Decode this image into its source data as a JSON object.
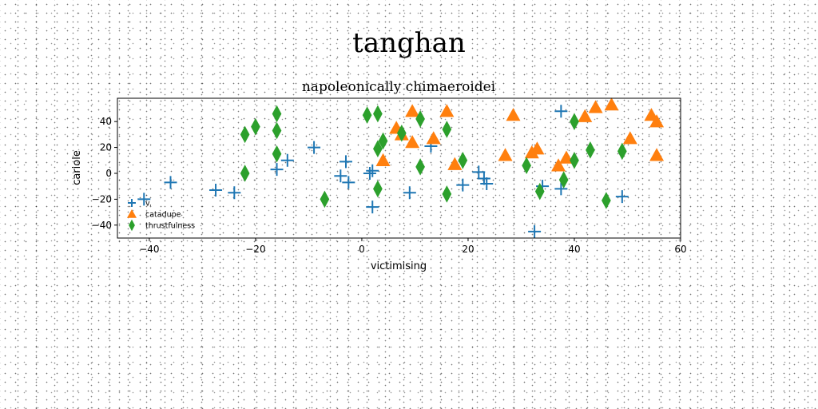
{
  "suptitle": "tanghan",
  "chart_data": {
    "type": "scatter",
    "title": "napoleonically chimaeroidei",
    "xlabel": "victimising",
    "ylabel": "cariole",
    "xlim": [
      -46,
      60
    ],
    "ylim": [
      -50,
      58
    ],
    "xticks": [
      -40,
      -20,
      0,
      20,
      40,
      60
    ],
    "yticks": [
      -40,
      -20,
      0,
      20,
      40
    ],
    "grid": false,
    "legend_position": "lower-left",
    "series": [
      {
        "name": "v.",
        "marker": "plus",
        "color": "#1f77b4",
        "points": [
          [
            -41,
            -20
          ],
          [
            -36,
            -7
          ],
          [
            -27.5,
            -13
          ],
          [
            -24,
            -15
          ],
          [
            -16,
            3
          ],
          [
            -14,
            10
          ],
          [
            -9,
            20
          ],
          [
            -4,
            -2
          ],
          [
            -3,
            9
          ],
          [
            -2.5,
            -7
          ],
          [
            1.5,
            0
          ],
          [
            2,
            2
          ],
          [
            2,
            -26
          ],
          [
            9,
            -15
          ],
          [
            13,
            21
          ],
          [
            19,
            -9
          ],
          [
            22,
            1
          ],
          [
            23,
            -4
          ],
          [
            23.5,
            -8
          ],
          [
            32.5,
            -45
          ],
          [
            34,
            -10
          ],
          [
            37.5,
            -12
          ],
          [
            37.5,
            48
          ],
          [
            49,
            -18
          ]
        ]
      },
      {
        "name": "catadupe",
        "marker": "triangle",
        "color": "#ff7f0e",
        "points": [
          [
            4,
            10
          ],
          [
            6.5,
            35
          ],
          [
            7.5,
            30
          ],
          [
            9.5,
            24
          ],
          [
            9.5,
            48
          ],
          [
            13.5,
            27
          ],
          [
            16,
            48
          ],
          [
            17.5,
            7
          ],
          [
            27,
            14
          ],
          [
            28.5,
            45
          ],
          [
            32,
            16
          ],
          [
            33,
            19
          ],
          [
            37,
            6
          ],
          [
            38.5,
            12
          ],
          [
            42,
            44
          ],
          [
            44,
            51
          ],
          [
            47,
            53
          ],
          [
            50.5,
            27
          ],
          [
            54.5,
            45
          ],
          [
            55.5,
            40
          ],
          [
            55.5,
            14
          ]
        ]
      },
      {
        "name": "thrustfulness",
        "marker": "diamond",
        "color": "#2ca02c",
        "points": [
          [
            -22,
            30
          ],
          [
            -22,
            0
          ],
          [
            -20,
            36
          ],
          [
            -16,
            46
          ],
          [
            -16,
            33
          ],
          [
            -16,
            15
          ],
          [
            -7,
            -20
          ],
          [
            1,
            45
          ],
          [
            3,
            46
          ],
          [
            3,
            19
          ],
          [
            3,
            -12
          ],
          [
            4,
            25
          ],
          [
            7.5,
            31
          ],
          [
            11,
            42
          ],
          [
            11,
            5
          ],
          [
            16,
            -16
          ],
          [
            16,
            34
          ],
          [
            19,
            10
          ],
          [
            31,
            6
          ],
          [
            33.5,
            -14
          ],
          [
            38,
            -5
          ],
          [
            40,
            10
          ],
          [
            40,
            40
          ],
          [
            43,
            18
          ],
          [
            46,
            -21
          ],
          [
            49,
            17
          ]
        ]
      }
    ]
  }
}
